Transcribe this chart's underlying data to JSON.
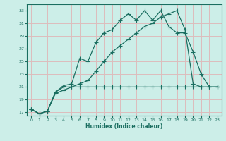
{
  "xlabel": "Humidex (Indice chaleur)",
  "bg_color": "#cceee8",
  "grid_color": "#ddbcbc",
  "line_color": "#1a6e60",
  "ylim": [
    16.5,
    34.0
  ],
  "xlim": [
    -0.5,
    23.5
  ],
  "yticks": [
    17,
    19,
    21,
    23,
    25,
    27,
    29,
    31,
    33
  ],
  "xticks": [
    0,
    1,
    2,
    3,
    4,
    5,
    6,
    7,
    8,
    9,
    10,
    11,
    12,
    13,
    14,
    15,
    16,
    17,
    18,
    19,
    20,
    21,
    22,
    23
  ],
  "line1_x": [
    0,
    1,
    2,
    3,
    4,
    5,
    6,
    7,
    8,
    9,
    10,
    11,
    12,
    13,
    14,
    15,
    16,
    17,
    18,
    19,
    20,
    21,
    22,
    23
  ],
  "line1_y": [
    17.5,
    16.8,
    17.2,
    20.2,
    21.0,
    21.0,
    21.0,
    21.0,
    21.0,
    21.0,
    21.0,
    21.0,
    21.0,
    21.0,
    21.0,
    21.0,
    21.0,
    21.0,
    21.0,
    21.0,
    21.0,
    21.0,
    21.0,
    21.0
  ],
  "line2_x": [
    0,
    1,
    2,
    3,
    4,
    5,
    6,
    7,
    8,
    9,
    10,
    11,
    12,
    13,
    14,
    15,
    16,
    17,
    18,
    19,
    20,
    21,
    22,
    23
  ],
  "line2_y": [
    17.5,
    16.8,
    17.2,
    20.2,
    21.2,
    21.5,
    25.5,
    25.0,
    28.0,
    29.5,
    30.0,
    31.5,
    32.5,
    31.5,
    33.0,
    31.5,
    33.0,
    30.5,
    29.5,
    29.5,
    26.5,
    23.0,
    21.0,
    21.0
  ],
  "line3_x": [
    0,
    1,
    2,
    3,
    4,
    5,
    6,
    7,
    8,
    9,
    10,
    11,
    12,
    13,
    14,
    15,
    16,
    17,
    18,
    19,
    20,
    21,
    22,
    23
  ],
  "line3_y": [
    17.5,
    16.8,
    17.2,
    20.0,
    20.5,
    21.0,
    21.5,
    22.0,
    23.5,
    25.0,
    26.5,
    27.5,
    28.5,
    29.5,
    30.5,
    31.0,
    32.0,
    32.5,
    33.0,
    30.0,
    21.5,
    21.0,
    21.0,
    21.0
  ]
}
